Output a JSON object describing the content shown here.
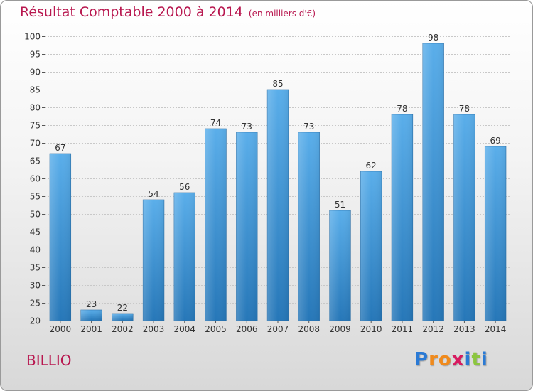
{
  "chart_data": {
    "type": "bar",
    "title": "Résultat Comptable 2000 à 2014",
    "unit_label": "(en milliers d'€)",
    "categories": [
      "2000",
      "2001",
      "2002",
      "2003",
      "2004",
      "2005",
      "2006",
      "2007",
      "2008",
      "2009",
      "2010",
      "2011",
      "2012",
      "2013",
      "2014"
    ],
    "values": [
      67,
      23,
      22,
      54,
      56,
      74,
      73,
      85,
      73,
      51,
      62,
      78,
      98,
      78,
      69
    ],
    "ylim": [
      20,
      100
    ],
    "yticks": [
      20,
      25,
      30,
      35,
      40,
      45,
      50,
      55,
      60,
      65,
      70,
      75,
      80,
      85,
      90,
      95,
      100
    ],
    "grid": true,
    "xlabel": "",
    "ylabel": ""
  },
  "commune": "BILLIO",
  "logo": {
    "letters": [
      "P",
      "r",
      "o",
      "x",
      "i",
      "t",
      "i"
    ],
    "colors": [
      "#2a7ad5",
      "#f08a1c",
      "#f08a1c",
      "#d81b60",
      "#2a7ad5",
      "#8cc63f",
      "#2a7ad5"
    ]
  },
  "colors": {
    "accent": "#b8174f",
    "bar_top": "#5aaeea",
    "bar_bottom": "#2677b8"
  }
}
